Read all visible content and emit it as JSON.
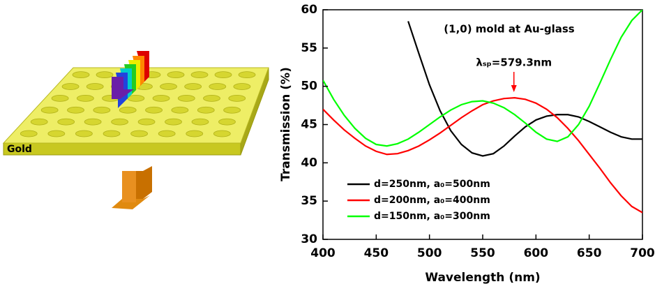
{
  "diagram": {
    "label": "Gold"
  },
  "chart_data": {
    "type": "line",
    "title": "(1,0) mold at Au-glass",
    "x_label": "Wavelength (nm)",
    "y_label": "Transmission (%)",
    "x": [
      400,
      410,
      420,
      430,
      440,
      450,
      460,
      470,
      480,
      490,
      500,
      510,
      520,
      530,
      540,
      550,
      560,
      570,
      580,
      590,
      600,
      610,
      620,
      630,
      640,
      650,
      660,
      670,
      680,
      690,
      700
    ],
    "series": [
      {
        "name": "d=250nm, a₀=500nm",
        "color": "#000000",
        "values": [
          null,
          null,
          null,
          null,
          null,
          null,
          null,
          null,
          58.5,
          54.3,
          50.2,
          46.8,
          44.2,
          42.4,
          41.3,
          40.9,
          41.2,
          42.2,
          43.5,
          44.7,
          45.6,
          46.1,
          46.3,
          46.3,
          46.0,
          45.4,
          44.7,
          44.0,
          43.4,
          43.1,
          43.1
        ]
      },
      {
        "name": "d=200nm, a₀=400nm",
        "color": "#ff0000",
        "values": [
          47.0,
          45.6,
          44.3,
          43.2,
          42.2,
          41.5,
          41.1,
          41.2,
          41.6,
          42.2,
          43.0,
          43.9,
          44.9,
          45.9,
          46.8,
          47.6,
          48.1,
          48.4,
          48.5,
          48.3,
          47.8,
          47.0,
          45.9,
          44.5,
          42.9,
          41.1,
          39.3,
          37.4,
          35.7,
          34.3,
          33.5
        ]
      },
      {
        "name": "d=150nm, a₀=300nm",
        "color": "#00ff00",
        "values": [
          50.8,
          48.3,
          46.2,
          44.5,
          43.2,
          42.4,
          42.2,
          42.5,
          43.1,
          44.0,
          45.0,
          46.0,
          46.9,
          47.6,
          48.0,
          48.1,
          47.8,
          47.2,
          46.3,
          45.2,
          44.0,
          43.1,
          42.8,
          43.4,
          45.0,
          47.4,
          50.4,
          53.5,
          56.4,
          58.6,
          60.0
        ]
      }
    ],
    "annotation": {
      "text": "λₛₚ=579.3nm",
      "x": 579.3,
      "color": "#ff0000"
    },
    "xlim": [
      400,
      700
    ],
    "xticks": [
      400,
      450,
      500,
      550,
      600,
      650,
      700
    ],
    "ylim": [
      30,
      60
    ],
    "yticks": [
      30,
      35,
      40,
      45,
      50,
      55,
      60
    ],
    "grid": false
  }
}
